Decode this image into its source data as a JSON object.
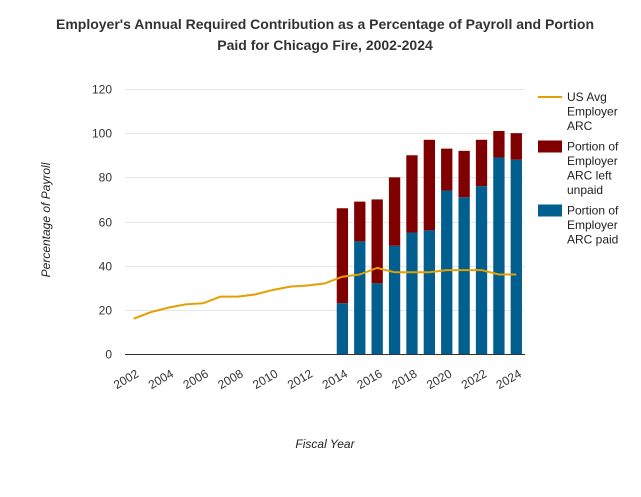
{
  "chart_data": {
    "type": "bar",
    "title_lines": [
      "Employer's Annual Required Contribution as a Percentage of Payroll and Portion",
      "Paid for Chicago Fire, 2002-2024"
    ],
    "xlabel": "Fiscal Year",
    "ylabel": "Percentage of Payroll",
    "ylim": [
      0,
      120
    ],
    "yticks": [
      0,
      20,
      40,
      60,
      80,
      100,
      120
    ],
    "grid": true,
    "stacked": true,
    "legend_position": "right",
    "x_tick_labels": [
      "2002",
      "2004",
      "2006",
      "2008",
      "2010",
      "2012",
      "2014",
      "2016",
      "2018",
      "2020",
      "2022",
      "2024"
    ],
    "categories": [
      2002,
      2003,
      2004,
      2005,
      2006,
      2007,
      2008,
      2009,
      2010,
      2011,
      2012,
      2013,
      2014,
      2015,
      2016,
      2017,
      2018,
      2019,
      2020,
      2021,
      2022,
      2023,
      2024
    ],
    "series": [
      {
        "name": "Portion of Employer ARC paid",
        "kind": "bar",
        "color": "#005f8f",
        "legend_lines": [
          "Portion of",
          "Employer",
          "ARC paid"
        ],
        "values": [
          null,
          null,
          null,
          null,
          null,
          null,
          null,
          null,
          null,
          null,
          null,
          null,
          23,
          51,
          32,
          49,
          55,
          56,
          74,
          71,
          76,
          89,
          88
        ]
      },
      {
        "name": "Portion of Employer ARC left unpaid",
        "kind": "bar",
        "color": "#800000",
        "legend_lines": [
          "Portion of",
          "Employer",
          "ARC left",
          "unpaid"
        ],
        "values": [
          null,
          null,
          null,
          null,
          null,
          null,
          null,
          null,
          null,
          null,
          null,
          null,
          43,
          18,
          38,
          31,
          35,
          41,
          19,
          21,
          21,
          12,
          12
        ]
      },
      {
        "name": "US Avg Employer ARC",
        "kind": "line",
        "color": "#e69f00",
        "legend_lines": [
          "US Avg",
          "Employer",
          "ARC"
        ],
        "values": [
          16,
          19,
          21,
          22.5,
          23,
          26,
          26,
          27,
          29,
          30.5,
          31,
          32,
          35,
          36,
          39,
          37,
          37,
          37,
          38,
          38,
          38,
          36,
          36
        ]
      }
    ]
  }
}
